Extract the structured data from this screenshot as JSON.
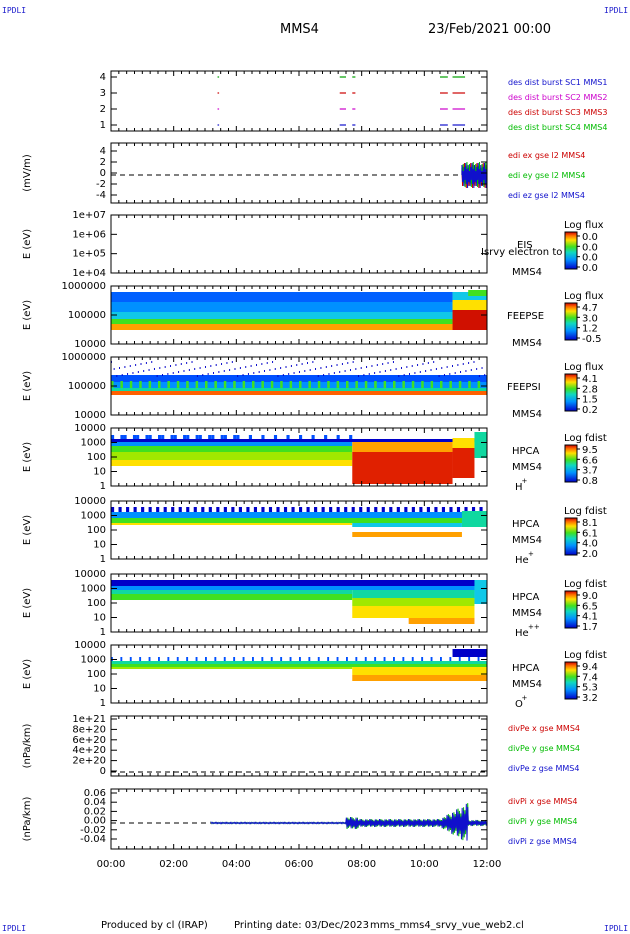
{
  "header": {
    "corner_tag": "IPDLI",
    "title": "MMS4",
    "date": "23/Feb/2021 00:00"
  },
  "footer": {
    "produced_by": "Produced by cl (IRAP)",
    "printing_date": "Printing date: 03/Dec/2023",
    "filename": "mms_mms4_srvy_vue_web2.cl"
  },
  "colors": {
    "red": "#cc0000",
    "green": "#00bb00",
    "blue": "#1010cc",
    "magenta": "#cc00cc",
    "dkgreen": "#00a000"
  },
  "chart_data": {
    "type": "heatmap",
    "x_axis": {
      "ticks": [
        "00:00",
        "02:00",
        "04:00",
        "06:00",
        "08:00",
        "10:00",
        "12:00"
      ],
      "range_hours": [
        0,
        12
      ]
    },
    "panels": [
      {
        "id": "burst",
        "type": "scatter",
        "yticks": [
          "4",
          "3",
          "2",
          "1"
        ],
        "legend": [
          {
            "label": "des dist burst SC1 MMS1",
            "color": "#1010cc"
          },
          {
            "label": "des dist burst SC2 MMS2",
            "color": "#cc00cc"
          },
          {
            "label": "des dist burst SC3 MMS3",
            "color": "#cc0000"
          },
          {
            "label": "des dist burst SC4 MMS4",
            "color": "#00bb00"
          }
        ],
        "segments": [
          {
            "sc": 4,
            "t0": 3.4,
            "t1": 3.45
          },
          {
            "sc": 3,
            "t0": 3.4,
            "t1": 3.45
          },
          {
            "sc": 2,
            "t0": 3.4,
            "t1": 3.45
          },
          {
            "sc": 1,
            "t0": 3.4,
            "t1": 3.45
          },
          {
            "sc": 4,
            "t0": 7.3,
            "t1": 7.5
          },
          {
            "sc": 4,
            "t0": 7.7,
            "t1": 7.8
          },
          {
            "sc": 3,
            "t0": 7.3,
            "t1": 7.5
          },
          {
            "sc": 3,
            "t0": 7.7,
            "t1": 7.8
          },
          {
            "sc": 2,
            "t0": 7.3,
            "t1": 7.5
          },
          {
            "sc": 2,
            "t0": 7.7,
            "t1": 7.8
          },
          {
            "sc": 1,
            "t0": 7.3,
            "t1": 7.5
          },
          {
            "sc": 1,
            "t0": 7.7,
            "t1": 7.8
          },
          {
            "sc": 4,
            "t0": 10.5,
            "t1": 10.75
          },
          {
            "sc": 4,
            "t0": 10.9,
            "t1": 11.3
          },
          {
            "sc": 3,
            "t0": 10.5,
            "t1": 10.75
          },
          {
            "sc": 3,
            "t0": 10.9,
            "t1": 11.3
          },
          {
            "sc": 2,
            "t0": 10.5,
            "t1": 10.75
          },
          {
            "sc": 2,
            "t0": 10.9,
            "t1": 11.3
          },
          {
            "sc": 1,
            "t0": 10.5,
            "t1": 10.75
          },
          {
            "sc": 1,
            "t0": 10.9,
            "t1": 11.3
          }
        ]
      },
      {
        "id": "edi",
        "type": "line",
        "ylabel": "(mV/m)",
        "yticks": [
          "4",
          "2",
          "0",
          "-2",
          "-4"
        ],
        "legend": [
          {
            "label": "edi ex gse l2 MMS4",
            "color": "#cc0000"
          },
          {
            "label": "edi ey gse l2 MMS4",
            "color": "#00bb00"
          },
          {
            "label": "edi ez gse l2 MMS4",
            "color": "#1010cc"
          }
        ],
        "active_from_hours": 11.2
      },
      {
        "id": "eis",
        "type": "heatmap",
        "ylabel": "E (eV)",
        "yticks": [
          "1e+07",
          "1e+06",
          "1e+05",
          "1e+04"
        ],
        "instrument": "EIS",
        "overlay": "Isrvy electron to",
        "sc": "MMS4",
        "cbar_title": "Log flux",
        "cbar_ticks": [
          "0.0",
          "0.0",
          "0.0",
          "0.0"
        ]
      },
      {
        "id": "feepse",
        "type": "heatmap",
        "ylabel": "E (eV)",
        "yticks": [
          "1000000",
          "100000",
          "10000"
        ],
        "instrument": "FEEPSE",
        "sc": "MMS4",
        "cbar_title": "Log flux",
        "cbar_ticks": [
          "4.7",
          "3.0",
          "1.2",
          "-0.5"
        ]
      },
      {
        "id": "feepsi",
        "type": "heatmap",
        "ylabel": "E (eV)",
        "yticks": [
          "1000000",
          "100000",
          "10000"
        ],
        "instrument": "FEEPSI",
        "sc": "MMS4",
        "cbar_title": "Log flux",
        "cbar_ticks": [
          "4.1",
          "2.8",
          "1.5",
          "0.2"
        ]
      },
      {
        "id": "hpca_h",
        "type": "heatmap",
        "ylabel": "E (eV)",
        "yticks": [
          "10000",
          "1000",
          "100",
          "10",
          "1"
        ],
        "instrument": "HPCA",
        "sc": "MMS4",
        "species": "H",
        "charge": "+",
        "cbar_title": "Log fdist",
        "cbar_ticks": [
          "9.5",
          "6.6",
          "3.7",
          "0.8"
        ]
      },
      {
        "id": "hpca_he",
        "type": "heatmap",
        "ylabel": "E (eV)",
        "yticks": [
          "10000",
          "1000",
          "100",
          "10",
          "1"
        ],
        "instrument": "HPCA",
        "sc": "MMS4",
        "species": "He",
        "charge": "+",
        "cbar_title": "Log fdist",
        "cbar_ticks": [
          "8.1",
          "6.1",
          "4.0",
          "2.0"
        ]
      },
      {
        "id": "hpca_he2",
        "type": "heatmap",
        "ylabel": "E (eV)",
        "yticks": [
          "10000",
          "1000",
          "100",
          "10",
          "1"
        ],
        "instrument": "HPCA",
        "sc": "MMS4",
        "species": "He",
        "charge": "++",
        "cbar_title": "Log fdist",
        "cbar_ticks": [
          "9.0",
          "6.5",
          "4.1",
          "1.7"
        ]
      },
      {
        "id": "hpca_o",
        "type": "heatmap",
        "ylabel": "E (eV)",
        "yticks": [
          "10000",
          "1000",
          "100",
          "10",
          "1"
        ],
        "instrument": "HPCA",
        "sc": "MMS4",
        "species": "O",
        "charge": "+",
        "cbar_title": "Log fdist",
        "cbar_ticks": [
          "9.4",
          "7.4",
          "5.3",
          "3.2"
        ]
      },
      {
        "id": "divpe",
        "type": "line",
        "ylabel": "(nPa/km)",
        "yticks": [
          "1e+21",
          "8e+20",
          "6e+20",
          "4e+20",
          "2e+20",
          "0"
        ],
        "legend": [
          {
            "label": "divPe x gse MMS4",
            "color": "#cc0000"
          },
          {
            "label": "divPe y gse MMS4",
            "color": "#00bb00"
          },
          {
            "label": "divPe z gse MMS4",
            "color": "#1010cc"
          }
        ]
      },
      {
        "id": "divpi",
        "type": "line",
        "ylabel": "(nPa/km)",
        "yticks": [
          "0.06",
          "0.04",
          "0.02",
          "0.00",
          "-0.02",
          "-0.04"
        ],
        "legend": [
          {
            "label": "divPi x gse MMS4",
            "color": "#cc0000"
          },
          {
            "label": "divPi y gse MMS4",
            "color": "#00bb00"
          },
          {
            "label": "divPi z gse MMS4",
            "color": "#1010cc"
          }
        ],
        "active_from_hours": 3.2
      }
    ]
  }
}
